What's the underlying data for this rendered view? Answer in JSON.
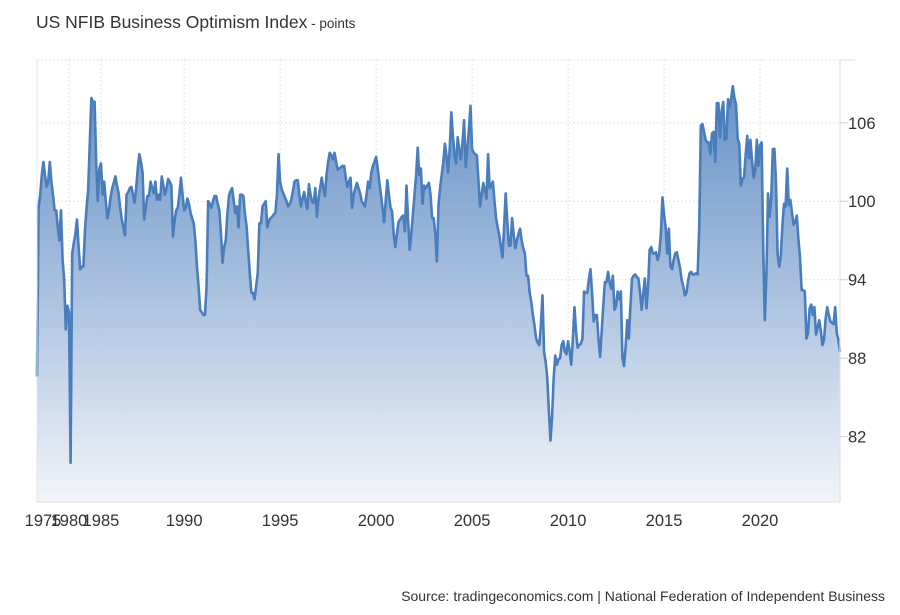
{
  "title": "US NFIB Business Optimism Index",
  "unit": " - points",
  "source": "Source: tradingeconomics.com | National Federation of Independent Business",
  "colors": {
    "line": "#4a7dbb",
    "fill_top": "#5f8cc4",
    "fill_bottom": "#f2f5fa",
    "grid": "#d9d9d9"
  },
  "chart_data": {
    "type": "area",
    "title": "US NFIB Business Optimism Index",
    "ylabel": "points",
    "y_axis_position": "right",
    "ylim": [
      77,
      110.8
    ],
    "y_ticks": [
      82,
      88,
      94,
      100,
      106
    ],
    "x_ticks": [
      "1975",
      "1980",
      "1985",
      "1990",
      "1995",
      "2000",
      "2005",
      "2010",
      "2015",
      "2020"
    ],
    "grid": true,
    "legend": "none",
    "quarterly": {
      "1975": [
        86.6,
        99.5,
        100.5,
        102.0
      ],
      "1976": [
        103.0,
        102.0,
        101.1,
        101.5
      ],
      "1977": [
        103.0,
        101.5,
        100.5,
        99.3
      ],
      "1978": [
        99.3,
        98.0,
        97.0,
        99.3
      ],
      "1979": [
        95.5,
        94.0,
        90.2,
        92.0
      ],
      "1980": [
        91.5,
        80.0,
        96.0,
        96.8
      ],
      "1981": [
        97.5,
        98.6,
        96.5,
        94.8
      ],
      "1982": [
        95.0,
        95.0,
        97.8,
        99.5
      ],
      "1983": [
        100.9,
        104.5,
        107.9,
        107.6
      ],
      "1984": [
        107.6,
        103.0,
        100.0,
        102.5
      ],
      "1985": [
        102.9,
        100.5,
        101.5,
        100.0
      ]
    },
    "monthly": {
      "1986": [
        98.7,
        99.3,
        100.3,
        101.0,
        101.4,
        101.9,
        101.2,
        100.6,
        99.5,
        98.6,
        98.0,
        97.4
      ],
      "1987": [
        100.5,
        100.7,
        101.0,
        101.1,
        100.5,
        99.9,
        101.0,
        102.5,
        103.6,
        103.0,
        102.2,
        98.6
      ],
      "1988": [
        99.5,
        100.4,
        100.4,
        101.5,
        101.0,
        100.6,
        101.5,
        100.1,
        100.5,
        100.1,
        101.9,
        101.2
      ],
      "1989": [
        100.5,
        101.0,
        101.7,
        101.5,
        101.2,
        97.3,
        98.5,
        99.3,
        99.5,
        100.5,
        101.8,
        100.5
      ],
      "1990": [
        99.3,
        99.5,
        100.2,
        99.8,
        99.1,
        98.7,
        98.3,
        97.0,
        95.0,
        93.5,
        91.7,
        91.5
      ],
      "1991": [
        91.3,
        91.3,
        93.5,
        100.0,
        99.8,
        99.5,
        100.0,
        100.4,
        100.4,
        99.8,
        99.3,
        97.5
      ],
      "1992": [
        95.3,
        96.5,
        97.0,
        99.0,
        100.4,
        100.8,
        101.0,
        100.0,
        99.1,
        99.6,
        98.0,
        100.5
      ],
      "1993": [
        100.5,
        100.4,
        99.0,
        98.1,
        96.3,
        94.5,
        93.0,
        93.0,
        92.5,
        93.5,
        94.5,
        98.3
      ],
      "1994": [
        98.3,
        99.6,
        99.8,
        100.0,
        98.0,
        98.5,
        98.7,
        98.8,
        99.0,
        99.1,
        100.5,
        103.6
      ],
      "1995": [
        101.5,
        100.9,
        100.6,
        100.3,
        100.0,
        99.6,
        99.8,
        100.1,
        100.8,
        101.5,
        101.6,
        101.6
      ],
      "1996": [
        100.5,
        99.6,
        100.2,
        100.7,
        100.0,
        99.4,
        101.3,
        100.5,
        99.9,
        99.9,
        101.0,
        98.8
      ],
      "1997": [
        100.2,
        101.0,
        101.8,
        101.0,
        100.4,
        102.0,
        103.0,
        103.7,
        103.5,
        103.2,
        103.7,
        103.0
      ],
      "1998": [
        102.4,
        102.5,
        102.6,
        102.7,
        102.7,
        101.8,
        101.1,
        101.5,
        101.8,
        99.5,
        100.5,
        101.0
      ],
      "1999": [
        101.4,
        101.0,
        100.6,
        100.0,
        99.8,
        99.6,
        100.5,
        101.5,
        101.0,
        102.2,
        102.7,
        103.0
      ],
      "2000": [
        103.4,
        102.5,
        101.5,
        100.5,
        99.5,
        98.4,
        100.0,
        101.6,
        100.5,
        99.5,
        99.2,
        97.5
      ],
      "2001": [
        96.5,
        97.5,
        98.4,
        98.6,
        98.8,
        98.9,
        97.7,
        101.2,
        98.5,
        96.3,
        97.5,
        99.0
      ],
      "2002": [
        100.5,
        102.0,
        104.1,
        102.0,
        102.5,
        99.8,
        101.2,
        101.0,
        101.2,
        101.4,
        100.5,
        98.7
      ],
      "2003": [
        98.7,
        97.5,
        95.4,
        99.7,
        101.0,
        102.0,
        103.0,
        104.4,
        103.5,
        102.2,
        104.0,
        106.8
      ],
      "2004": [
        105.0,
        103.5,
        102.9,
        104.9,
        103.9,
        103.2,
        104.5,
        106.2,
        102.6,
        104.0,
        105.5,
        107.3
      ],
      "2005": [
        104.0,
        103.7,
        103.6,
        103.5,
        101.5,
        99.6,
        100.5,
        101.4,
        100.8,
        100.2,
        103.6,
        101.0
      ],
      "2006": [
        101.2,
        101.5,
        100.0,
        98.7,
        98.0,
        97.4,
        96.5,
        95.7,
        98.0,
        100.6,
        98.5,
        96.6
      ],
      "2007": [
        96.6,
        98.7,
        97.5,
        96.4,
        97.0,
        97.5,
        97.9,
        97.0,
        96.4,
        96.0,
        94.3,
        94.3
      ],
      "2008": [
        93.0,
        92.3,
        91.3,
        90.5,
        89.5,
        89.2,
        89.0,
        90.5,
        92.8,
        88.5,
        87.7,
        86.5
      ],
      "2009": [
        84.0,
        81.7,
        83.5,
        86.5,
        88.2,
        87.5,
        87.9,
        88.0,
        89.0,
        89.3,
        88.5,
        88.3
      ],
      "2010": [
        89.3,
        88.5,
        87.5,
        89.5,
        91.9,
        90.0,
        88.8,
        89.0,
        89.1,
        89.5,
        93.1,
        93.0
      ],
      "2011": [
        93.0,
        94.0,
        94.8,
        93.0,
        90.8,
        91.3,
        91.3,
        89.5,
        88.1,
        90.0,
        92.0,
        93.8
      ],
      "2012": [
        93.8,
        94.6,
        93.8,
        93.3,
        94.3,
        91.7,
        92.0,
        93.1,
        92.5,
        93.1,
        88.0,
        87.4
      ],
      "2013": [
        88.9,
        90.9,
        89.5,
        92.0,
        94.1,
        94.3,
        94.4,
        94.2,
        94.1,
        93.0,
        91.7,
        92.9
      ],
      "2014": [
        94.1,
        91.8,
        93.4,
        96.3,
        96.5,
        96.0,
        96.0,
        96.1,
        95.5,
        96.0,
        97.5,
        100.3
      ],
      "2015": [
        99.0,
        98.0,
        96.0,
        97.9,
        95.0,
        94.8,
        95.5,
        96.0,
        96.1,
        95.5,
        94.9,
        94.0
      ],
      "2016": [
        93.5,
        92.8,
        93.0,
        93.9,
        94.5,
        94.6,
        94.4,
        94.4,
        94.5,
        94.4,
        98.0,
        105.8
      ],
      "2017": [
        105.9,
        105.3,
        104.7,
        104.5,
        104.5,
        103.6,
        105.2,
        105.3,
        103.0,
        107.5,
        107.5,
        104.9
      ],
      "2018": [
        106.9,
        107.6,
        104.7,
        104.8,
        107.8,
        107.2,
        107.9,
        108.8,
        107.9,
        107.4,
        104.8,
        104.4
      ],
      "2019": [
        101.2,
        101.7,
        101.8,
        103.5,
        105.0,
        103.3,
        104.7,
        103.1,
        101.8,
        102.4,
        104.7,
        102.7
      ],
      "2020": [
        104.3,
        104.5,
        96.4,
        90.9,
        94.4,
        100.6,
        98.8,
        100.2,
        104.0,
        104.0,
        101.4,
        95.9
      ],
      "2021": [
        95.0,
        95.8,
        98.2,
        99.8,
        99.6,
        102.5,
        99.7,
        100.1,
        99.1,
        98.2,
        98.4,
        98.9
      ],
      "2022": [
        97.1,
        95.7,
        93.2,
        93.2,
        93.1,
        89.5,
        89.9,
        91.8,
        92.1,
        91.3,
        91.9,
        89.8
      ],
      "2023": [
        90.3,
        90.9,
        90.1,
        89.0,
        89.4,
        91.0,
        91.9,
        91.3,
        90.8,
        90.7,
        90.6,
        91.9
      ],
      "2024": [
        89.9,
        89.4,
        88.5
      ]
    }
  }
}
